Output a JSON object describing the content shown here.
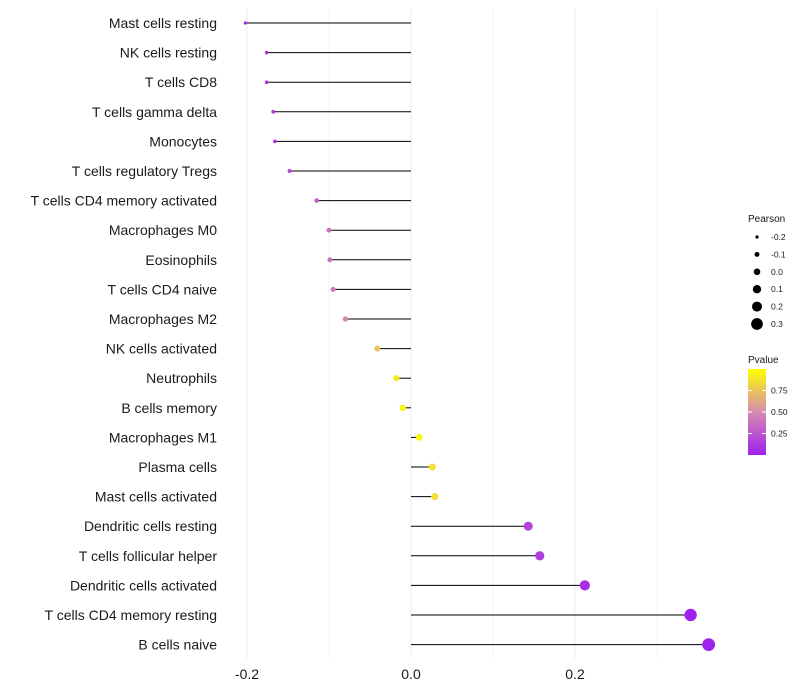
{
  "chart_data": {
    "type": "lollipop",
    "orientation": "horizontal",
    "categories": [
      "Mast cells resting",
      "NK cells resting",
      "T cells CD8",
      "T cells gamma delta",
      "Monocytes",
      "T cells regulatory  Tregs",
      "T cells CD4 memory activated",
      "Macrophages M0",
      "Eosinophils",
      "T cells CD4 naive",
      "Macrophages M2",
      "NK cells activated",
      "Neutrophils",
      "B cells memory",
      "Macrophages M1",
      "Plasma cells",
      "Mast cells activated",
      "Dendritic cells resting",
      "T cells follicular helper",
      "Dendritic cells activated",
      "T cells CD4 memory resting",
      "B cells naive"
    ],
    "pearson": [
      -0.202,
      -0.176,
      -0.176,
      -0.168,
      -0.166,
      -0.148,
      -0.115,
      -0.1,
      -0.099,
      -0.095,
      -0.08,
      -0.041,
      -0.018,
      -0.01,
      0.01,
      0.026,
      0.029,
      0.143,
      0.157,
      0.212,
      0.341,
      0.363
    ],
    "pvalue": [
      0.03,
      0.09,
      0.09,
      0.11,
      0.12,
      0.17,
      0.3,
      0.38,
      0.38,
      0.41,
      0.48,
      0.74,
      0.9,
      0.95,
      0.96,
      0.87,
      0.85,
      0.17,
      0.15,
      0.07,
      0.01,
      0.005
    ],
    "xlim": [
      -0.2,
      0.363
    ],
    "xticks": [
      -0.2,
      0.0,
      0.2
    ],
    "xtick_labels": [
      "-0.2",
      "0.0",
      "0.2"
    ],
    "xlabel": "",
    "ylabel": "",
    "title": "",
    "grid": true,
    "legends": {
      "size": {
        "title": "Pearson",
        "values": [
          -0.2,
          -0.1,
          0.0,
          0.1,
          0.2,
          0.3
        ],
        "labels": [
          "-0.2",
          "-0.1",
          "0.0",
          "0.1",
          "0.2",
          "0.3"
        ]
      },
      "color": {
        "title": "Pvalue",
        "range": [
          0,
          1
        ],
        "ticks": [
          0.25,
          0.5,
          0.75
        ],
        "labels": [
          "0.25",
          "0.50",
          "0.75"
        ],
        "low_color": "#a020f0",
        "mid_color": "#d58bb0",
        "high_color": "#ffff00"
      },
      "placement": "right"
    },
    "colors": {
      "segment": "#000000",
      "grid": "#ebebeb"
    }
  }
}
